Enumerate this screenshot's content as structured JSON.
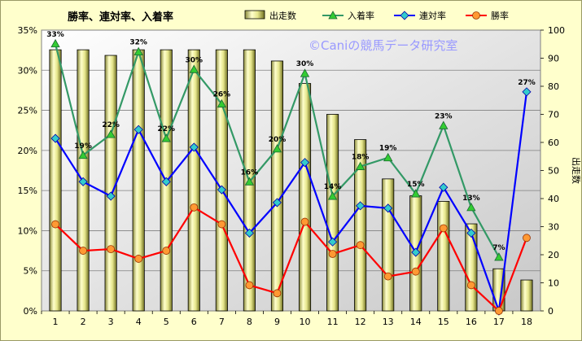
{
  "chart_data": {
    "type": "bar+line",
    "title": "勝率、連対率、入着率",
    "watermark": "©Caniの競馬データ研究室",
    "categories": [
      "1",
      "2",
      "3",
      "4",
      "5",
      "6",
      "7",
      "8",
      "9",
      "10",
      "11",
      "12",
      "13",
      "14",
      "15",
      "16",
      "17",
      "18"
    ],
    "left_axis": {
      "ticks": [
        "0%",
        "5%",
        "10%",
        "15%",
        "20%",
        "25%",
        "30%",
        "35%"
      ],
      "ylim": [
        0,
        35
      ]
    },
    "right_axis": {
      "label": "出走数",
      "ticks": [
        "0",
        "10",
        "20",
        "30",
        "40",
        "50",
        "60",
        "70",
        "80",
        "90",
        "100"
      ],
      "ylim": [
        0,
        100
      ]
    },
    "legend_position": "top",
    "grid": true,
    "bar_series": {
      "name": "出走数",
      "axis": "right",
      "color": "#e8e8a0",
      "values": [
        93,
        93,
        91,
        93,
        93,
        93,
        93,
        93,
        89,
        81,
        70,
        61,
        47,
        41,
        39,
        31,
        15,
        11
      ]
    },
    "series": [
      {
        "name": "入着率",
        "axis": "left",
        "color": "#339966",
        "marker": "triangle",
        "values": [
          33.3,
          19.4,
          22.0,
          32.3,
          21.5,
          30.1,
          25.8,
          16.1,
          20.2,
          29.6,
          14.3,
          18.0,
          19.1,
          14.6,
          23.1,
          12.9,
          6.7,
          null
        ],
        "labels": [
          "33%",
          "19%",
          "22%",
          "32%",
          "22%",
          "30%",
          "26%",
          "16%",
          "20%",
          "30%",
          "14%",
          "18%",
          "19%",
          "15%",
          "23%",
          "13%",
          "7%",
          ""
        ]
      },
      {
        "name": "連対率",
        "axis": "left",
        "color": "#0000ff",
        "marker": "diamond",
        "values": [
          21.5,
          16.1,
          14.3,
          22.6,
          16.1,
          20.4,
          15.1,
          9.7,
          13.5,
          18.5,
          8.6,
          13.1,
          12.8,
          7.3,
          15.4,
          9.7,
          0.0,
          27.3
        ],
        "labels": [
          "",
          "",
          "",
          "",
          "",
          "",
          "",
          "",
          "",
          "",
          "",
          "",
          "",
          "",
          "",
          "",
          "",
          "27%"
        ]
      },
      {
        "name": "勝率",
        "axis": "left",
        "color": "#ff0000",
        "marker": "circle",
        "values": [
          10.8,
          7.5,
          7.7,
          6.5,
          7.5,
          12.9,
          10.8,
          3.2,
          2.2,
          11.1,
          7.1,
          8.2,
          4.3,
          4.9,
          10.3,
          3.2,
          0.0,
          9.1
        ]
      }
    ]
  }
}
